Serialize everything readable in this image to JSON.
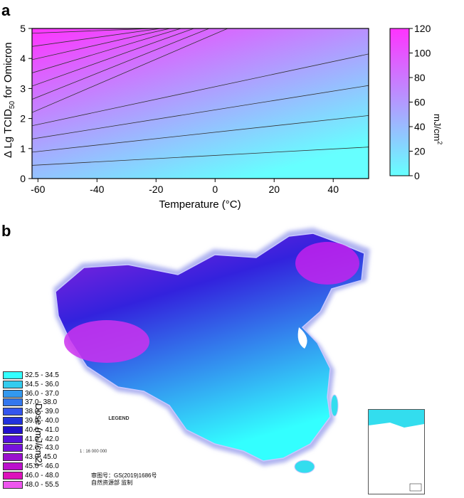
{
  "panels": {
    "a_label": "a",
    "b_label": "b"
  },
  "chart_data": [
    {
      "type": "heatmap",
      "panel": "a",
      "xlabel": "Temperature (°C)",
      "ylabel": "Δ Lg TCID50 for Omicron",
      "xlim": [
        -62,
        52
      ],
      "ylim": [
        0,
        5
      ],
      "xticks": [
        -60,
        -40,
        -20,
        0,
        20,
        40
      ],
      "yticks": [
        0,
        1,
        2,
        3,
        4,
        5
      ],
      "colorbar": {
        "label": "mJ/cm2",
        "range": [
          0,
          120
        ],
        "ticks": [
          0,
          20,
          40,
          60,
          80,
          100,
          120
        ],
        "colors": [
          "#66ffff",
          "#ff33ff"
        ]
      },
      "contours": [
        {
          "y_at_xmin": 0.44,
          "y_at_xmax": 1.05
        },
        {
          "y_at_xmin": 0.88,
          "y_at_xmax": 2.1
        },
        {
          "y_at_xmin": 1.32,
          "y_at_xmax": 3.1
        },
        {
          "y_at_xmin": 1.76,
          "y_at_xmax": 4.15
        },
        {
          "y_at_xmin": 2.2,
          "y_at_xmax": 5.0
        },
        {
          "y_at_xmin": 2.64,
          "y_at_xmax": 5.0
        },
        {
          "y_at_xmin": 3.08,
          "y_at_xmax": 5.0
        },
        {
          "y_at_xmin": 3.52,
          "y_at_xmax": 5.0
        },
        {
          "y_at_xmin": 3.96,
          "y_at_xmax": 5.0
        },
        {
          "y_at_xmin": 4.4,
          "y_at_xmax": 5.0
        },
        {
          "y_at_xmin": 4.84,
          "y_at_xmax": 5.0
        }
      ]
    },
    {
      "type": "map",
      "panel": "b",
      "legend_title": "Dose (mJ/cm2)",
      "classes": [
        {
          "label": "32.5 - 34.5",
          "color": "#33ffff"
        },
        {
          "label": "34.5 - 36.0",
          "color": "#33ccee"
        },
        {
          "label": "36.0 - 37.0",
          "color": "#3399ee"
        },
        {
          "label": "37.0- 38.0",
          "color": "#3377ee"
        },
        {
          "label": "38.0 - 39.0",
          "color": "#3355ee"
        },
        {
          "label": "39.0 - 40.0",
          "color": "#2233dd"
        },
        {
          "label": "40.0 - 41.0",
          "color": "#2211cc"
        },
        {
          "label": "41.0 - 42.0",
          "color": "#5511dd"
        },
        {
          "label": "42.0 - 43.0",
          "color": "#7711dd"
        },
        {
          "label": "43.0- 45.0",
          "color": "#9911cc"
        },
        {
          "label": "45.0 - 46.0",
          "color": "#bb11cc"
        },
        {
          "label": "46.0 - 48.0",
          "color": "#dd11bb"
        },
        {
          "label": "48.0 - 55.5",
          "color": "#ee55ee"
        }
      ]
    }
  ],
  "map_text": {
    "legend_heading": "LEGEND",
    "scale": "1 : 16 000 000",
    "caption_line1": "审图号：GS(2019)1686号",
    "caption_line2": "自然资源部 监制"
  }
}
